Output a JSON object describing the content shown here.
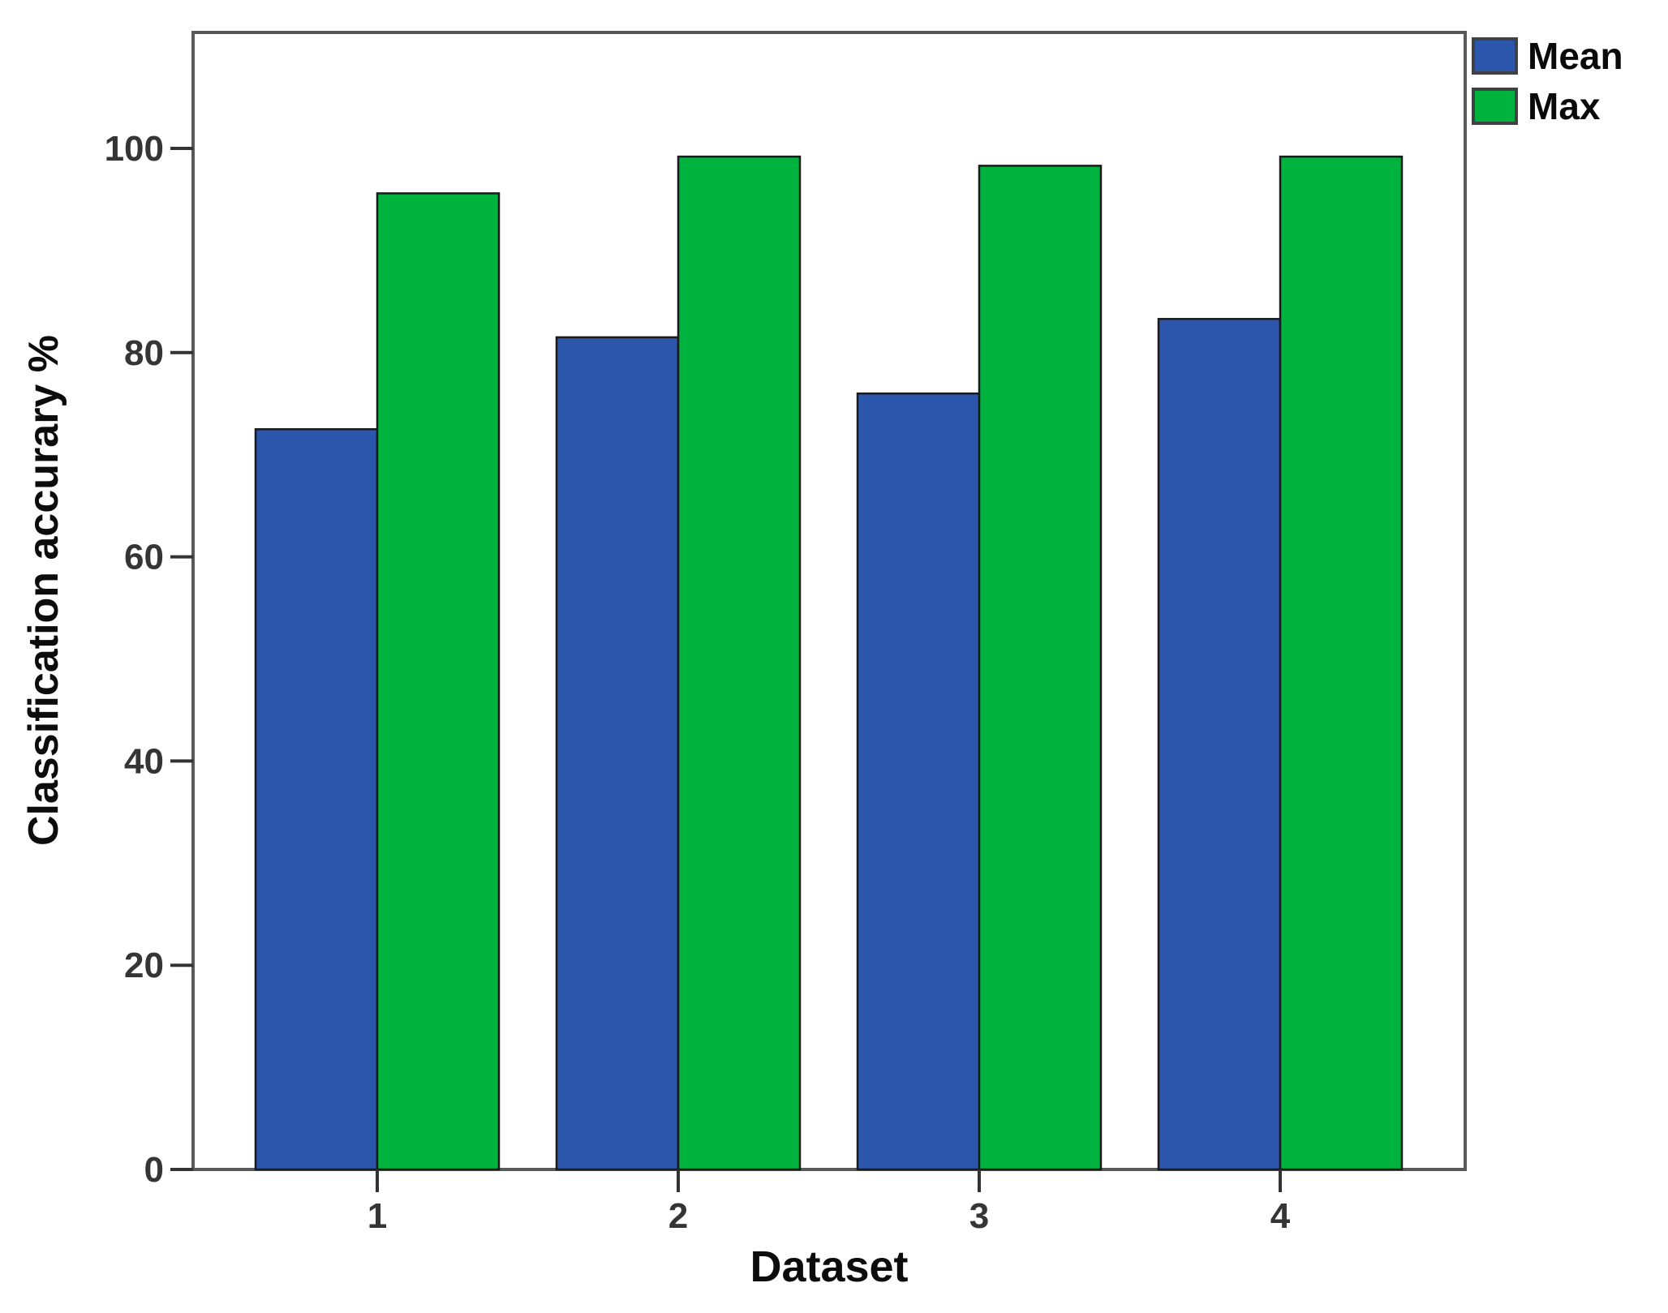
{
  "chart_data": {
    "type": "bar",
    "categories": [
      "1",
      "2",
      "3",
      "4"
    ],
    "series": [
      {
        "name": "Mean",
        "color": "#2c56ab",
        "values": [
          72.5,
          81.5,
          76.0,
          83.3
        ]
      },
      {
        "name": "Max",
        "color": "#00b33f",
        "values": [
          95.6,
          99.2,
          98.3,
          99.2
        ]
      }
    ],
    "title": "",
    "xlabel": "Dataset",
    "ylabel": "Classification accurary %",
    "ylim": [
      0,
      111
    ],
    "yticks": [
      0,
      20,
      40,
      60,
      80,
      100
    ],
    "grid": false,
    "legend_position": "top-right-outside",
    "frame_color": "#58595b",
    "bar_outline_color": "#1a1a1a",
    "tick_color": "#333333",
    "tick_label_color": "#353535",
    "axis_label_color": "#0c0c0c",
    "background_color": "#ffffff"
  }
}
